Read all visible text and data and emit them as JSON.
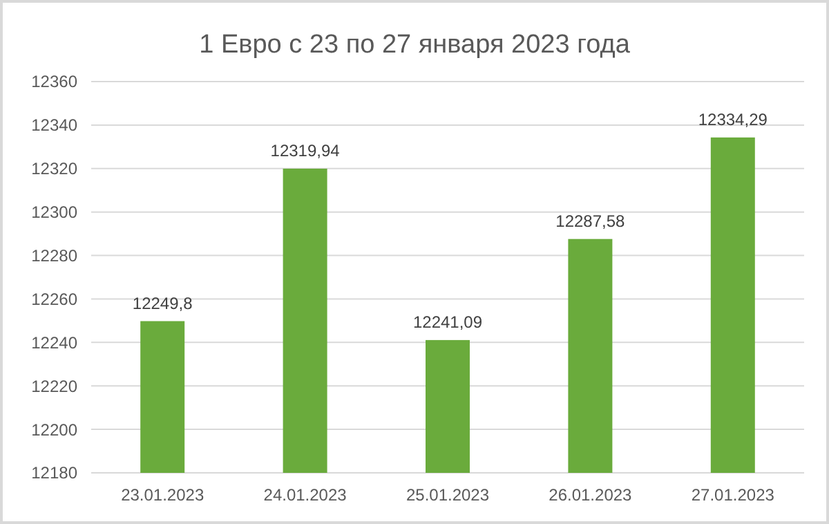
{
  "chart_data": {
    "type": "bar",
    "title": "1 Евро с 23 по 27 января 2023 года",
    "categories": [
      "23.01.2023",
      "24.01.2023",
      "25.01.2023",
      "26.01.2023",
      "27.01.2023"
    ],
    "values": [
      12249.8,
      12319.94,
      12241.09,
      12287.58,
      12334.29
    ],
    "value_labels": [
      "12249,8",
      "12319,94",
      "12241,09",
      "12287,58",
      "12334,29"
    ],
    "color": "#6aab3c",
    "ylim": [
      12180,
      12360
    ],
    "yticks": [
      12180,
      12200,
      12220,
      12240,
      12260,
      12280,
      12300,
      12320,
      12340,
      12360
    ],
    "grid": "y"
  }
}
